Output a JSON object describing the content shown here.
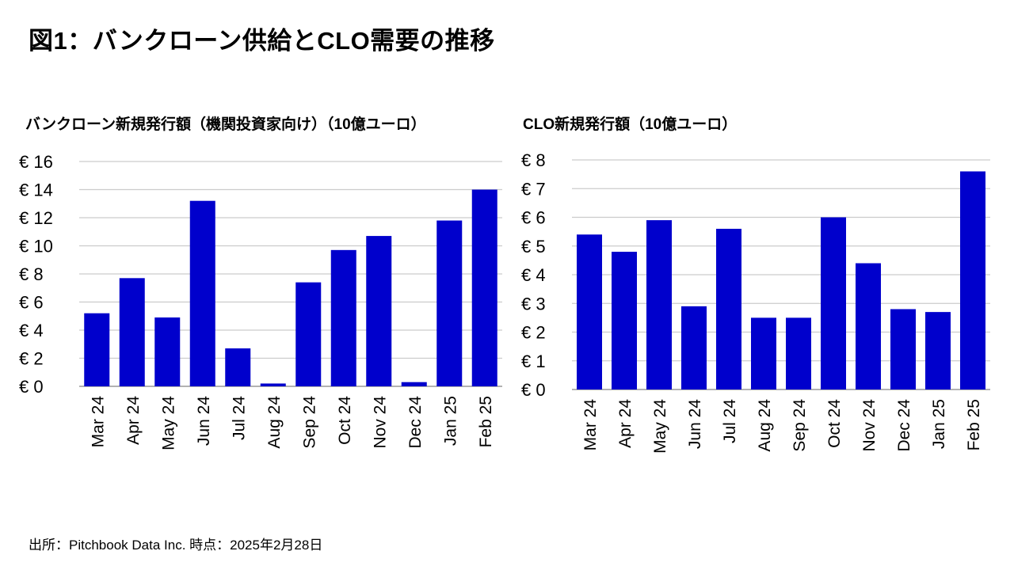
{
  "title": "図1：バンクローン供給とCLO需要の推移",
  "source": "出所：Pitchbook Data Inc. 時点：2025年2月28日",
  "chart_data": [
    {
      "type": "bar",
      "title": "バンクローン新規発行額（機関投資家向け）（10億ユーロ）",
      "categories": [
        "Mar 24",
        "Apr 24",
        "May 24",
        "Jun 24",
        "Jul 24",
        "Aug 24",
        "Sep 24",
        "Oct 24",
        "Nov 24",
        "Dec 24",
        "Jan 25",
        "Feb 25"
      ],
      "values": [
        5.2,
        7.7,
        4.9,
        13.2,
        2.7,
        0.2,
        7.4,
        9.7,
        10.7,
        0.3,
        11.8,
        14.0
      ],
      "y_ticks": [
        "€ 0",
        "€ 2",
        "€ 4",
        "€ 6",
        "€ 8",
        "€ 10",
        "€ 12",
        "€ 14",
        "€ 16"
      ],
      "ylim": [
        0,
        16
      ],
      "y_step": 2,
      "grid": true,
      "bar_color": "#0000CC"
    },
    {
      "type": "bar",
      "title": "CLO新規発行額（10億ユーロ）",
      "categories": [
        "Mar 24",
        "Apr 24",
        "May 24",
        "Jun 24",
        "Jul 24",
        "Aug 24",
        "Sep 24",
        "Oct 24",
        "Nov 24",
        "Dec 24",
        "Jan 25",
        "Feb 25"
      ],
      "values": [
        5.4,
        4.8,
        5.9,
        2.9,
        5.6,
        2.5,
        2.5,
        6.0,
        4.4,
        2.8,
        2.7,
        7.6
      ],
      "y_ticks": [
        "€ 0",
        "€ 1",
        "€ 2",
        "€ 3",
        "€ 4",
        "€ 5",
        "€ 6",
        "€ 7",
        "€ 8"
      ],
      "ylim": [
        0,
        8
      ],
      "y_step": 1,
      "grid": true,
      "bar_color": "#0000CC"
    }
  ]
}
